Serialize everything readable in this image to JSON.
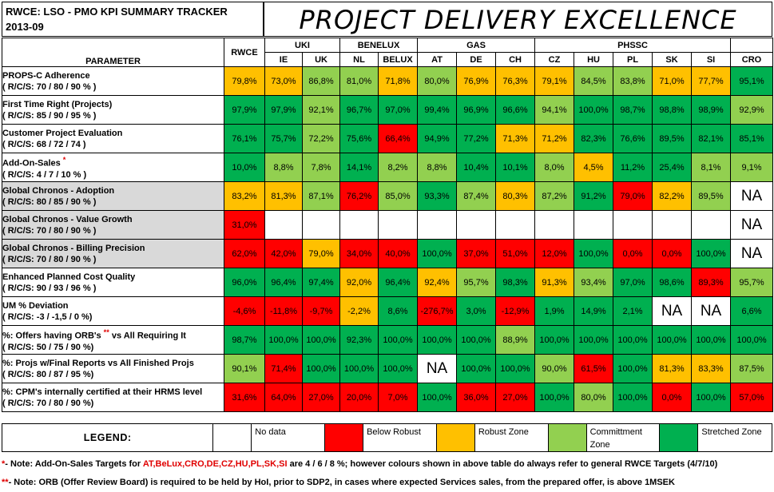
{
  "header": {
    "left_line1": "RWCE: LSO - PMO KPI SUMMARY TRACKER",
    "left_line2": "2013-09",
    "banner": "PROJECT DELIVERY EXCELLENCE"
  },
  "columns": {
    "parameter": "PARAMETER",
    "rwce": "RWCE",
    "groups": [
      {
        "name": "UKI",
        "cols": [
          "IE",
          "UK"
        ]
      },
      {
        "name": "BENELUX",
        "cols": [
          "NL",
          "BELUX"
        ]
      },
      {
        "name": "GAS",
        "cols": [
          "AT",
          "DE",
          "CH"
        ]
      },
      {
        "name": "PHSSC",
        "cols": [
          "CZ",
          "HU",
          "PL",
          "SK",
          "SI"
        ]
      }
    ],
    "cro": "CRO"
  },
  "rows": [
    {
      "name": "PROPS-C Adherence",
      "star": "",
      "suffix": "",
      "sub": "( R/C/S: 70 / 80 / 90 % )",
      "grey": false,
      "cells": [
        [
          "79,8%",
          "yl"
        ],
        [
          "73,0%",
          "yl"
        ],
        [
          "86,8%",
          "lg"
        ],
        [
          "81,0%",
          "lg"
        ],
        [
          "71,8%",
          "yl"
        ],
        [
          "80,0%",
          "lg"
        ],
        [
          "76,9%",
          "yl"
        ],
        [
          "76,3%",
          "yl"
        ],
        [
          "79,1%",
          "yl"
        ],
        [
          "84,5%",
          "lg"
        ],
        [
          "83,8%",
          "lg"
        ],
        [
          "71,0%",
          "yl"
        ],
        [
          "77,7%",
          "yl"
        ],
        [
          "95,1%",
          "dg"
        ]
      ]
    },
    {
      "name": "First Time Right (Projects)",
      "star": "",
      "suffix": "",
      "sub": "( R/C/S: 85 / 90 / 95 % )",
      "grey": false,
      "cells": [
        [
          "97,9%",
          "dg"
        ],
        [
          "97,9%",
          "dg"
        ],
        [
          "92,1%",
          "lg"
        ],
        [
          "96,7%",
          "dg"
        ],
        [
          "97,0%",
          "dg"
        ],
        [
          "99,4%",
          "dg"
        ],
        [
          "96,9%",
          "dg"
        ],
        [
          "96,6%",
          "dg"
        ],
        [
          "94,1%",
          "lg"
        ],
        [
          "100,0%",
          "dg"
        ],
        [
          "98,7%",
          "dg"
        ],
        [
          "98,8%",
          "dg"
        ],
        [
          "98,9%",
          "dg"
        ],
        [
          "92,9%",
          "lg"
        ]
      ]
    },
    {
      "name": "Customer Project Evaluation",
      "star": "",
      "suffix": "",
      "sub": "( R/C/S: 68 / 72 / 74 )",
      "grey": false,
      "cells": [
        [
          "76,1%",
          "dg"
        ],
        [
          "75,7%",
          "dg"
        ],
        [
          "72,2%",
          "lg"
        ],
        [
          "75,6%",
          "dg"
        ],
        [
          "66,4%",
          "rd"
        ],
        [
          "94,9%",
          "dg"
        ],
        [
          "77,2%",
          "dg"
        ],
        [
          "71,3%",
          "yl"
        ],
        [
          "71,2%",
          "yl"
        ],
        [
          "82,3%",
          "dg"
        ],
        [
          "76,6%",
          "dg"
        ],
        [
          "89,5%",
          "dg"
        ],
        [
          "82,1%",
          "dg"
        ],
        [
          "85,1%",
          "dg"
        ]
      ]
    },
    {
      "name": "Add-On-Sales",
      "star": "*",
      "suffix": "",
      "sub": "( R/C/S: 4 / 7 / 10 % )",
      "grey": false,
      "cells": [
        [
          "10,0%",
          "dg"
        ],
        [
          "8,8%",
          "lg"
        ],
        [
          "7,8%",
          "lg"
        ],
        [
          "14,1%",
          "dg"
        ],
        [
          "8,2%",
          "lg"
        ],
        [
          "8,8%",
          "lg"
        ],
        [
          "10,4%",
          "dg"
        ],
        [
          "10,1%",
          "dg"
        ],
        [
          "8,0%",
          "lg"
        ],
        [
          "4,5%",
          "yl"
        ],
        [
          "11,2%",
          "dg"
        ],
        [
          "25,4%",
          "dg"
        ],
        [
          "8,1%",
          "lg"
        ],
        [
          "9,1%",
          "lg"
        ]
      ]
    },
    {
      "name": "Global Chronos - Adoption",
      "star": "",
      "suffix": "",
      "sub": "( R/C/S: 80 / 85 / 90 % )",
      "grey": true,
      "cells": [
        [
          "83,2%",
          "yl"
        ],
        [
          "81,3%",
          "yl"
        ],
        [
          "87,1%",
          "lg"
        ],
        [
          "76,2%",
          "rd"
        ],
        [
          "85,0%",
          "lg"
        ],
        [
          "93,3%",
          "dg"
        ],
        [
          "87,4%",
          "lg"
        ],
        [
          "80,3%",
          "yl"
        ],
        [
          "87,2%",
          "lg"
        ],
        [
          "91,2%",
          "dg"
        ],
        [
          "79,0%",
          "rd"
        ],
        [
          "82,2%",
          "yl"
        ],
        [
          "89,5%",
          "lg"
        ],
        [
          "NA",
          "na"
        ]
      ]
    },
    {
      "name": "Global Chronos - Value Growth",
      "star": "",
      "suffix": "",
      "sub": "( R/C/S: 70 / 80 / 90 % )",
      "grey": true,
      "cells": [
        [
          "31,0%",
          "rd"
        ],
        [
          "",
          "wh"
        ],
        [
          "",
          "wh"
        ],
        [
          "",
          "wh"
        ],
        [
          "",
          "wh"
        ],
        [
          "",
          "wh"
        ],
        [
          "",
          "wh"
        ],
        [
          "",
          "wh"
        ],
        [
          "",
          "wh"
        ],
        [
          "",
          "wh"
        ],
        [
          "",
          "wh"
        ],
        [
          "",
          "wh"
        ],
        [
          "",
          "wh"
        ],
        [
          "NA",
          "na"
        ]
      ]
    },
    {
      "name": "Global Chronos - Billing Precision",
      "star": "",
      "suffix": "",
      "sub": "( R/C/S: 70 / 80 / 90 % )",
      "grey": true,
      "cells": [
        [
          "62,0%",
          "rd"
        ],
        [
          "42,0%",
          "rd"
        ],
        [
          "79,0%",
          "yl"
        ],
        [
          "34,0%",
          "rd"
        ],
        [
          "40,0%",
          "rd"
        ],
        [
          "100,0%",
          "dg"
        ],
        [
          "37,0%",
          "rd"
        ],
        [
          "51,0%",
          "rd"
        ],
        [
          "12,0%",
          "rd"
        ],
        [
          "100,0%",
          "dg"
        ],
        [
          "0,0%",
          "rd"
        ],
        [
          "0,0%",
          "rd"
        ],
        [
          "100,0%",
          "dg"
        ],
        [
          "NA",
          "na"
        ]
      ]
    },
    {
      "name": "Enhanced Planned Cost Quality",
      "star": "",
      "suffix": "",
      "sub": "( R/C/S: 90 / 93 / 96 % )",
      "grey": false,
      "cells": [
        [
          "96,0%",
          "dg"
        ],
        [
          "96,4%",
          "dg"
        ],
        [
          "97,4%",
          "dg"
        ],
        [
          "92,0%",
          "yl"
        ],
        [
          "96,4%",
          "dg"
        ],
        [
          "92,4%",
          "yl"
        ],
        [
          "95,7%",
          "lg"
        ],
        [
          "98,3%",
          "dg"
        ],
        [
          "91,3%",
          "yl"
        ],
        [
          "93,4%",
          "lg"
        ],
        [
          "97,0%",
          "dg"
        ],
        [
          "98,6%",
          "dg"
        ],
        [
          "89,3%",
          "rd"
        ],
        [
          "95,7%",
          "lg"
        ]
      ]
    },
    {
      "name": "UM % Deviation",
      "star": "",
      "suffix": "",
      "sub": "( R/C/S: -3 / -1,5 / 0 %)",
      "grey": false,
      "cells": [
        [
          "-4,6%",
          "rd"
        ],
        [
          "-11,8%",
          "rd"
        ],
        [
          "-9,7%",
          "rd"
        ],
        [
          "-2,2%",
          "yl"
        ],
        [
          "8,6%",
          "dg"
        ],
        [
          "-276,7%",
          "rd"
        ],
        [
          "3,0%",
          "dg"
        ],
        [
          "-12,9%",
          "rd"
        ],
        [
          "1,9%",
          "dg"
        ],
        [
          "14,9%",
          "dg"
        ],
        [
          "2,1%",
          "dg"
        ],
        [
          "NA",
          "na"
        ],
        [
          "NA",
          "na"
        ],
        [
          "6,6%",
          "dg"
        ]
      ]
    },
    {
      "name": "%: Offers having ORB's",
      "star": "**",
      "suffix": " vs All Requiring It",
      "sub": "( R/C/S: 50 / 75 / 90 %)",
      "grey": false,
      "cells": [
        [
          "98,7%",
          "dg"
        ],
        [
          "100,0%",
          "dg"
        ],
        [
          "100,0%",
          "dg"
        ],
        [
          "92,3%",
          "dg"
        ],
        [
          "100,0%",
          "dg"
        ],
        [
          "100,0%",
          "dg"
        ],
        [
          "100,0%",
          "dg"
        ],
        [
          "88,9%",
          "lg"
        ],
        [
          "100,0%",
          "dg"
        ],
        [
          "100,0%",
          "dg"
        ],
        [
          "100,0%",
          "dg"
        ],
        [
          "100,0%",
          "dg"
        ],
        [
          "100,0%",
          "dg"
        ],
        [
          "100,0%",
          "dg"
        ]
      ]
    },
    {
      "name": "%: Projs w/Final Reports vs All Finished Projs",
      "star": "",
      "suffix": "",
      "sub": "( R/C/S: 80 / 87 / 95 %)",
      "grey": false,
      "cells": [
        [
          "90,1%",
          "lg"
        ],
        [
          "71,4%",
          "rd"
        ],
        [
          "100,0%",
          "dg"
        ],
        [
          "100,0%",
          "dg"
        ],
        [
          "100,0%",
          "dg"
        ],
        [
          "NA",
          "na"
        ],
        [
          "100,0%",
          "dg"
        ],
        [
          "100,0%",
          "dg"
        ],
        [
          "90,0%",
          "lg"
        ],
        [
          "61,5%",
          "rd"
        ],
        [
          "100,0%",
          "dg"
        ],
        [
          "81,3%",
          "yl"
        ],
        [
          "83,3%",
          "yl"
        ],
        [
          "87,5%",
          "lg"
        ]
      ]
    },
    {
      "name": "%: CPM's internally certified at their HRMS level",
      "star": "",
      "suffix": "",
      "sub": "( R/C/S: 70 / 80 / 90 %)",
      "grey": false,
      "cells": [
        [
          "31,6%",
          "rd"
        ],
        [
          "64,0%",
          "rd"
        ],
        [
          "27,0%",
          "rd"
        ],
        [
          "20,0%",
          "rd"
        ],
        [
          "7,0%",
          "rd"
        ],
        [
          "100,0%",
          "dg"
        ],
        [
          "36,0%",
          "rd"
        ],
        [
          "27,0%",
          "rd"
        ],
        [
          "100,0%",
          "dg"
        ],
        [
          "80,0%",
          "lg"
        ],
        [
          "100,0%",
          "dg"
        ],
        [
          "0,0%",
          "rd"
        ],
        [
          "100,0%",
          "dg"
        ],
        [
          "57,0%",
          "rd"
        ]
      ]
    }
  ],
  "legend": {
    "title": "LEGEND:",
    "items": [
      {
        "label": "No data",
        "color": "#ffffff"
      },
      {
        "label": "Below Robust",
        "color": "#ff0000"
      },
      {
        "label": "Robust Zone",
        "color": "#ffc000"
      },
      {
        "label": "Committment Zone",
        "color": "#92d050"
      },
      {
        "label": "Stretched Zone",
        "color": "#00b050"
      }
    ]
  },
  "notes": [
    {
      "mark": "*",
      "dash": "- Note: Add-On-Sales Targets for ",
      "red": "AT,BeLux,CRO,DE,CZ,HU,PL,SK,SI",
      "rest": " are 4 / 6 / 8 %; however colours shown in above table do always refer to general RWCE Targets (4/7/10)"
    },
    {
      "mark": "**",
      "dash": "- Note: ORB (Offer Review Board) is required to be held by HoI, prior to SDP2, in cases where expected Services sales, from the prepared offer, is above 1MSEK",
      "red": "",
      "rest": ""
    }
  ],
  "colors": {
    "stretched": "#00b050",
    "commitment": "#92d050",
    "robust": "#ffc000",
    "below": "#ff0000",
    "header_grey": "#d9d9d9"
  }
}
